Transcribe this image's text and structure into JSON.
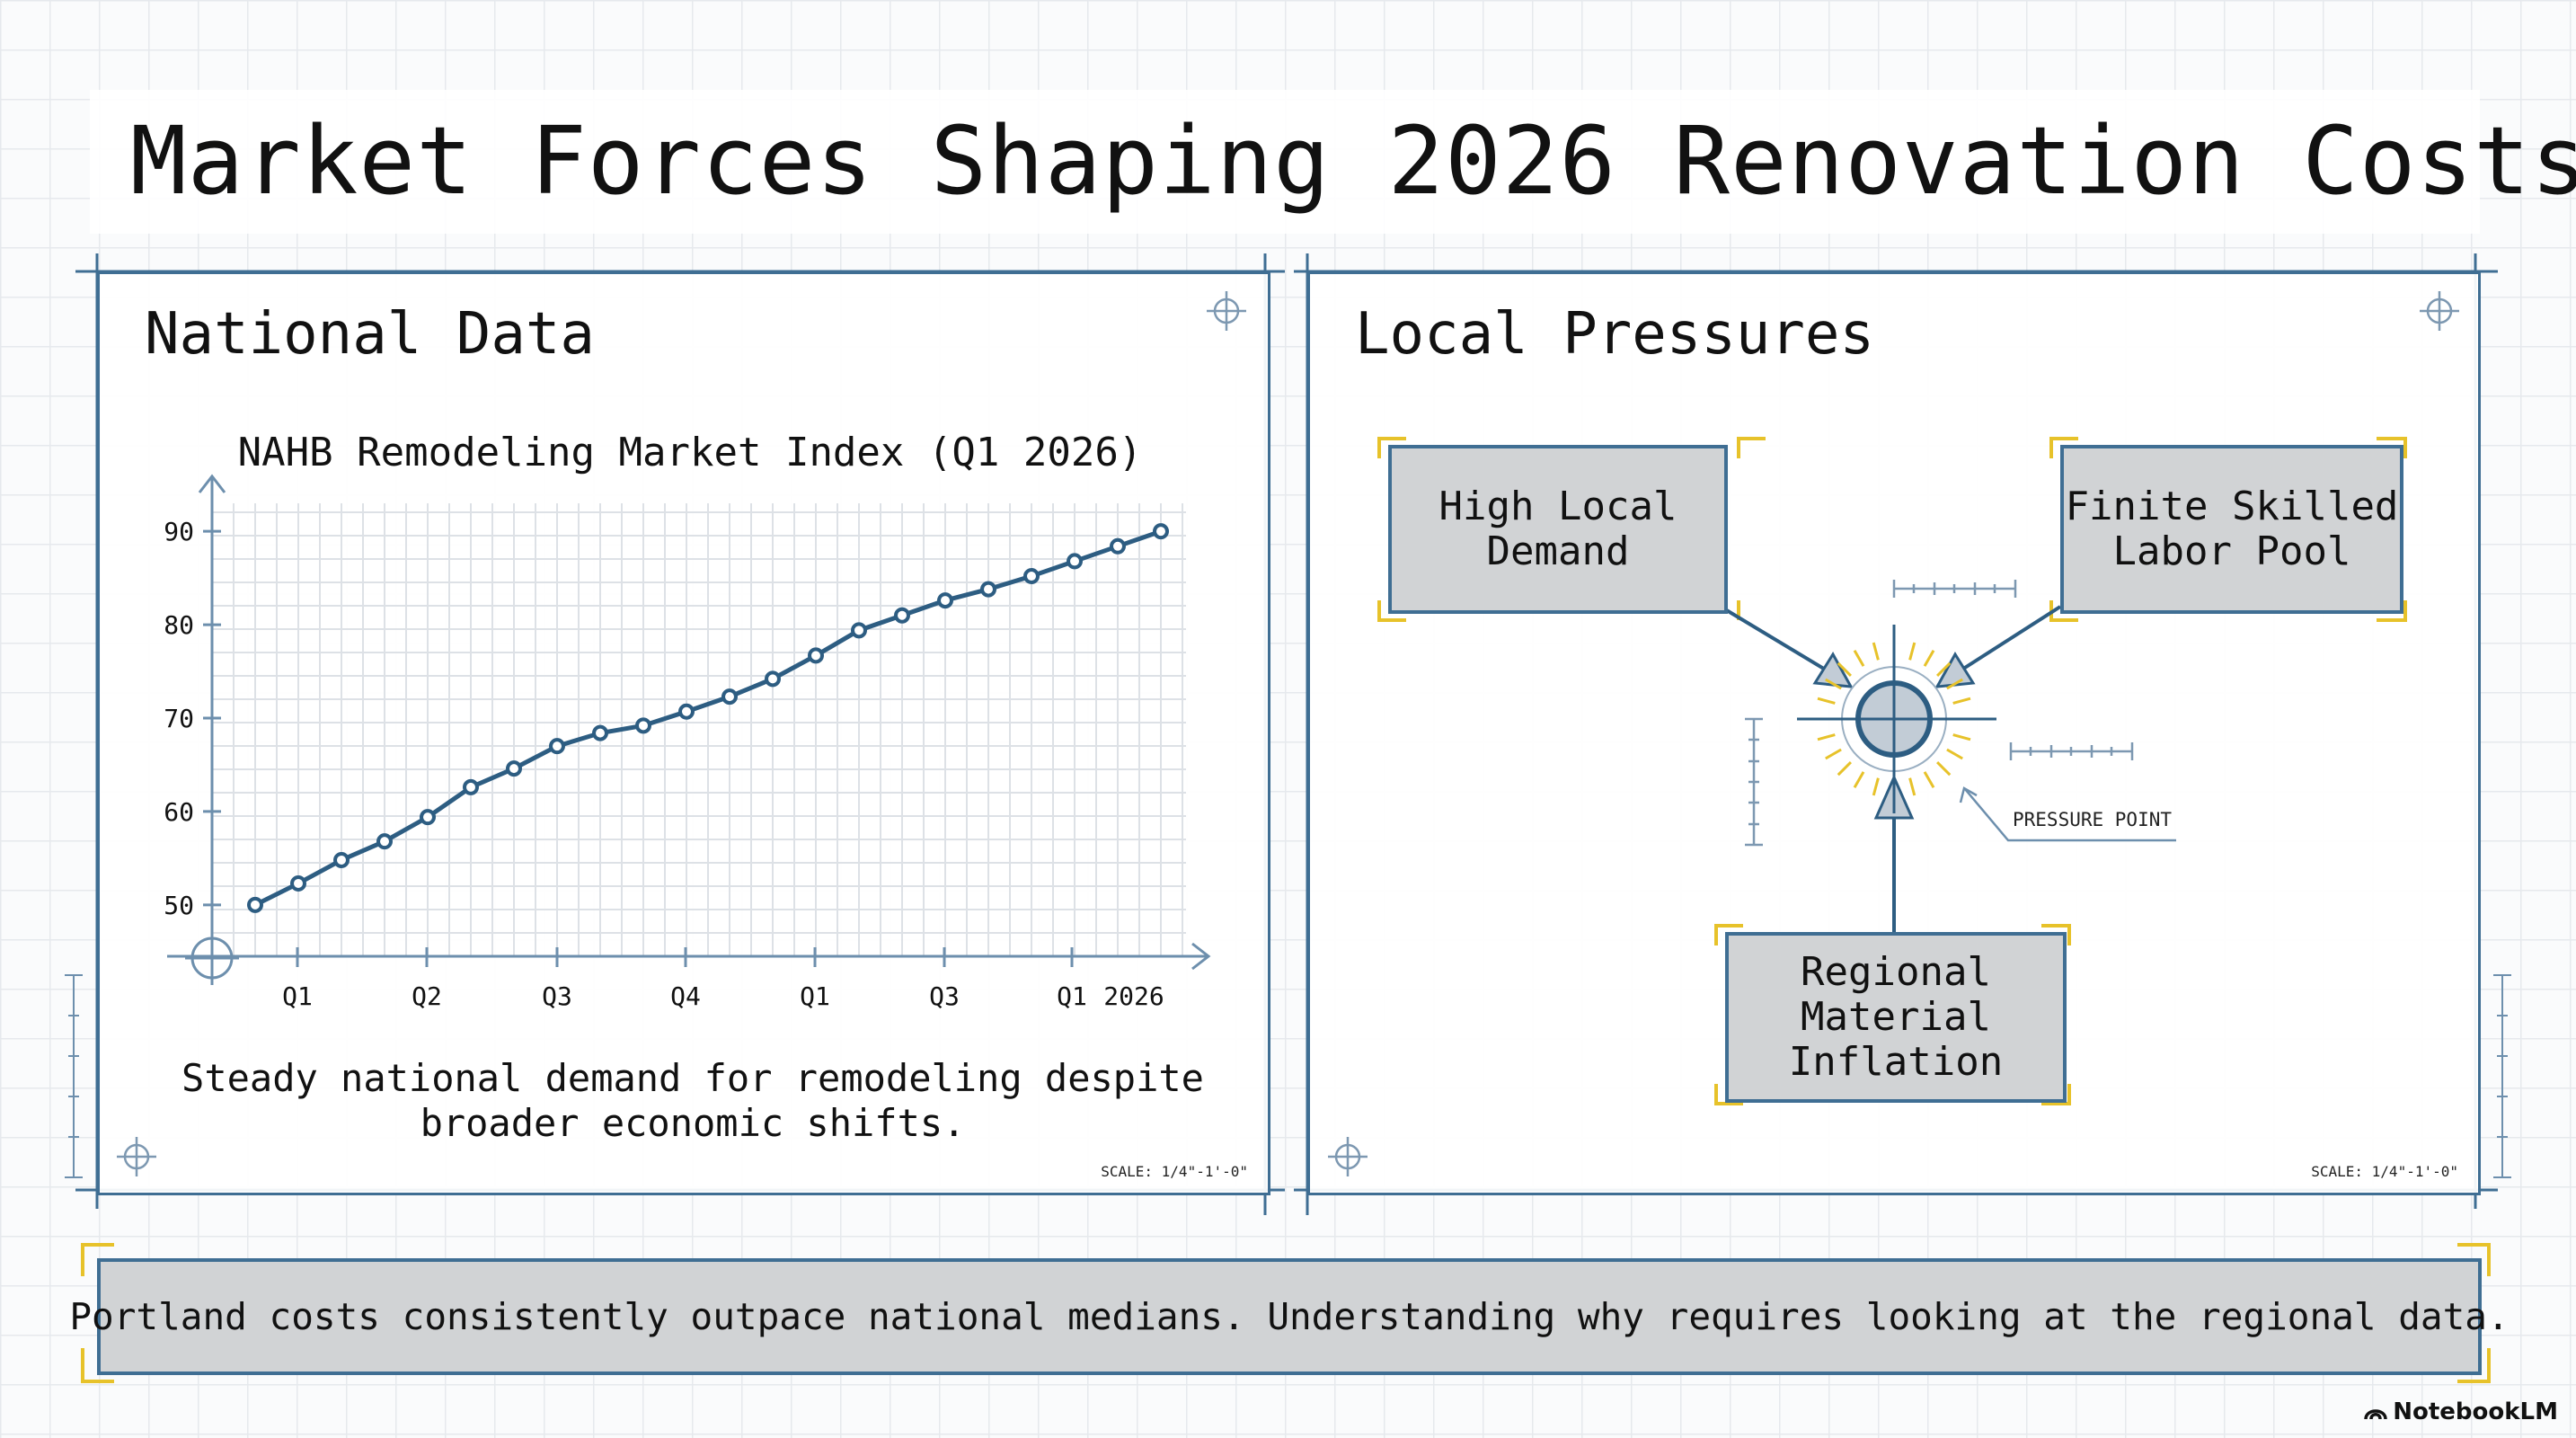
{
  "title": "Market Forces Shaping 2026 Renovation Costs",
  "panels": {
    "national": {
      "heading": "National Data",
      "caption": "Steady national demand for remodeling despite broader economic shifts.",
      "scale": "SCALE: 1/4\"-1'-0\""
    },
    "local": {
      "heading": "Local Pressures",
      "scale": "SCALE: 1/4\"-1'-0\"",
      "nodes": {
        "demand": "High Local\nDemand",
        "labor": "Finite Skilled\nLabor Pool",
        "material": "Regional\nMaterial\nInflation"
      },
      "pressure_label": "PRESSURE POINT"
    }
  },
  "chart_data": {
    "type": "line",
    "title": "NAHB Remodeling Market Index (Q1 2026)",
    "xlabel": "",
    "ylabel": "",
    "ylim": [
      44.5,
      93
    ],
    "yticks": [
      50,
      60,
      70,
      80,
      90
    ],
    "x_tick_labels": [
      "Q1",
      "Q2",
      "Q3",
      "Q4",
      "Q1",
      "Q3",
      "Q1",
      "2026"
    ],
    "grid": true,
    "series": [
      {
        "values": [
          50,
          52.3,
          54.8,
          56.8,
          59.4,
          62.6,
          64.6,
          67,
          68.4,
          69.2,
          70.7,
          72.3,
          74.2,
          76.7,
          79.4,
          81,
          82.6,
          83.8,
          85.2,
          86.8,
          88.4,
          90
        ]
      }
    ],
    "color": "#2d5d82"
  },
  "footer": {
    "text": "Portland costs consistently outpace national medians. Understanding why requires looking at the regional data."
  },
  "brand": "NotebookLM",
  "colors": {
    "frame": "#3f6e93",
    "line": "#2d5d82",
    "accent": "#e7c22a",
    "box": "#d1d3d5"
  }
}
